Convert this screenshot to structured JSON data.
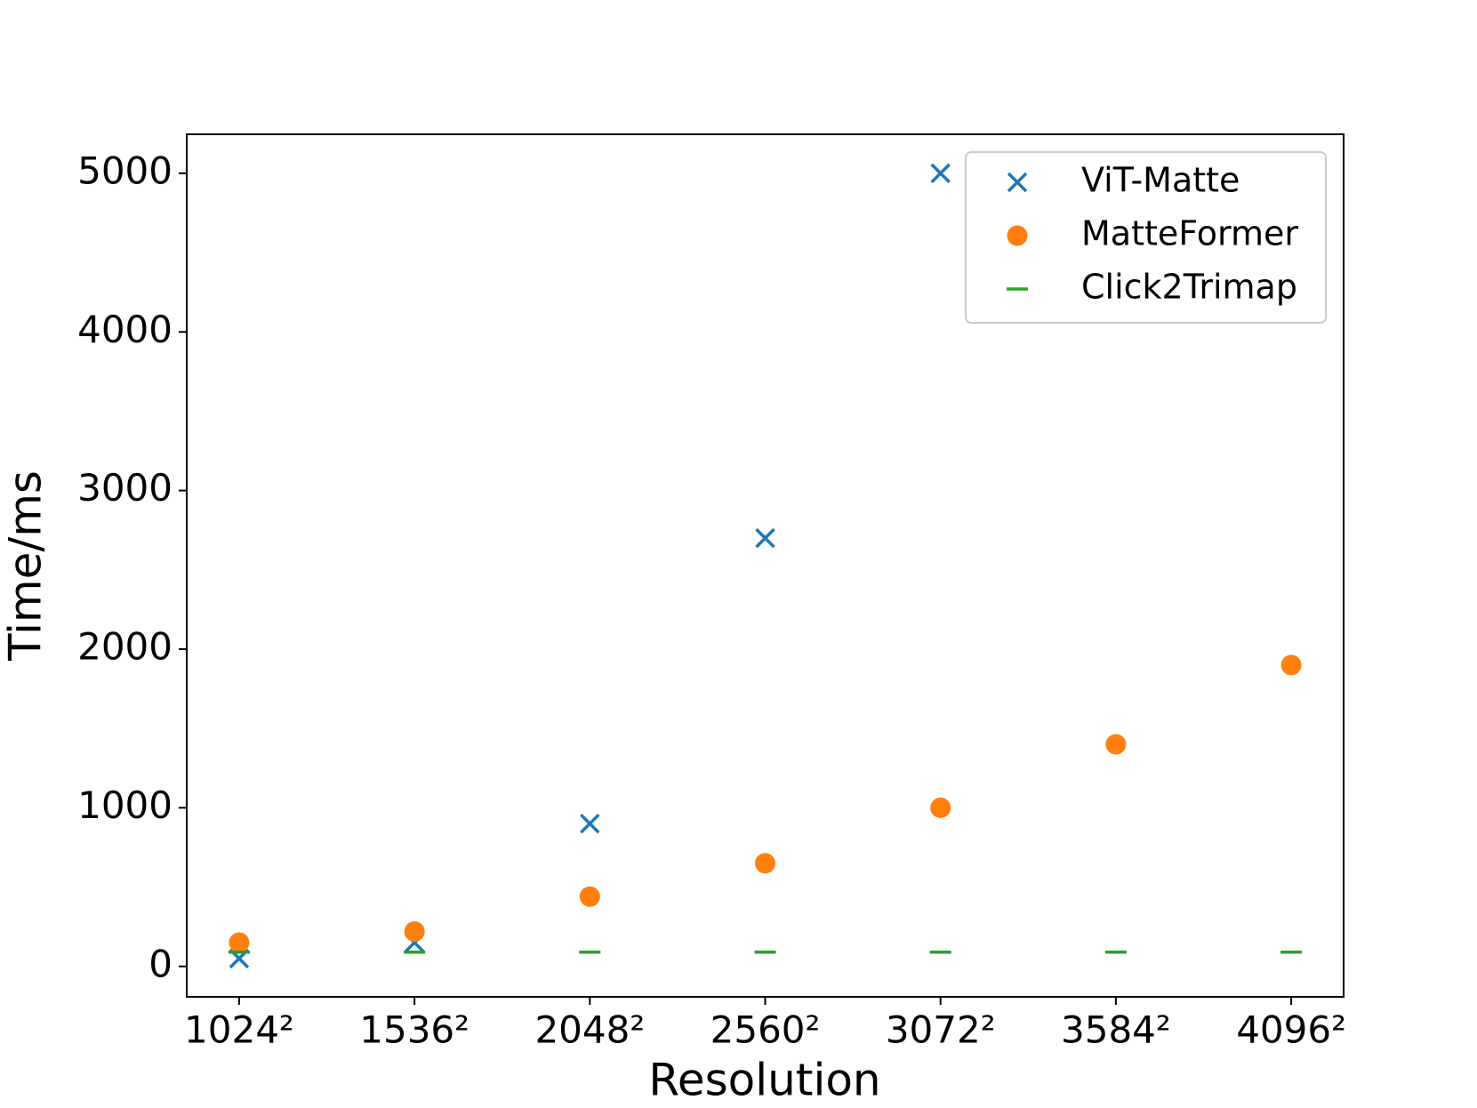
{
  "chart_data": {
    "type": "scatter",
    "x_label": "Resolution",
    "y_label": "Time/ms",
    "x": [
      1024,
      1536,
      2048,
      2560,
      3072,
      3584,
      4096
    ],
    "series": [
      {
        "name": "ViT-Matte",
        "color": "#1f77b4",
        "marker": "x",
        "values": [
          50,
          150,
          900,
          2700,
          5000,
          null,
          null
        ]
      },
      {
        "name": "MatteFormer",
        "color": "#ff7f0e",
        "marker": "o",
        "values": [
          150,
          220,
          440,
          650,
          1000,
          1400,
          1900
        ]
      },
      {
        "name": "Click2Trimap",
        "color": "#2ca02c",
        "marker": "_",
        "values": [
          90,
          90,
          90,
          90,
          90,
          90,
          90
        ]
      }
    ],
    "xlim": [
      871,
      4249
    ],
    "ylim": [
      -192,
      5246
    ],
    "xticks": [
      {
        "value": 1024,
        "label": "1024²"
      },
      {
        "value": 1536,
        "label": "1536²"
      },
      {
        "value": 2048,
        "label": "2048²"
      },
      {
        "value": 2560,
        "label": "2560²"
      },
      {
        "value": 3072,
        "label": "3072²"
      },
      {
        "value": 3584,
        "label": "3584²"
      },
      {
        "value": 4096,
        "label": "4096²"
      }
    ],
    "yticks": [
      0,
      1000,
      2000,
      3000,
      4000,
      5000
    ],
    "legend": "upper right",
    "grid": false
  }
}
